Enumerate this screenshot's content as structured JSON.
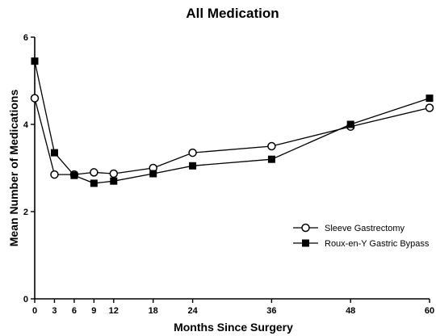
{
  "chart_data": {
    "type": "line",
    "title": "All Medication",
    "xlabel": "Months Since Surgery",
    "ylabel": "Mean Number of Medications",
    "x": [
      0,
      3,
      6,
      9,
      12,
      18,
      24,
      36,
      48,
      60
    ],
    "xticks": [
      0,
      3,
      6,
      9,
      12,
      18,
      24,
      36,
      48,
      60
    ],
    "xtick_labels": [
      "0",
      "3",
      "6",
      "9",
      "12",
      "18",
      "24",
      "36",
      "48",
      "60"
    ],
    "yticks": [
      0,
      2,
      4,
      6
    ],
    "ytick_labels": [
      "0",
      "2",
      "4",
      "6"
    ],
    "xlim": [
      0,
      60
    ],
    "ylim": [
      0,
      6
    ],
    "grid": false,
    "legend_position": "lower-right",
    "series": [
      {
        "name": "Sleeve Gastrectomy",
        "marker": "open-circle",
        "color": "#000000",
        "values": [
          4.6,
          2.85,
          2.85,
          2.9,
          2.87,
          3.0,
          3.35,
          3.5,
          3.95,
          4.38
        ]
      },
      {
        "name": "Roux-en-Y Gastric Bypass",
        "marker": "filled-square",
        "color": "#000000",
        "values": [
          5.45,
          3.35,
          2.83,
          2.65,
          2.7,
          2.87,
          3.05,
          3.2,
          4.0,
          4.6
        ]
      }
    ]
  }
}
